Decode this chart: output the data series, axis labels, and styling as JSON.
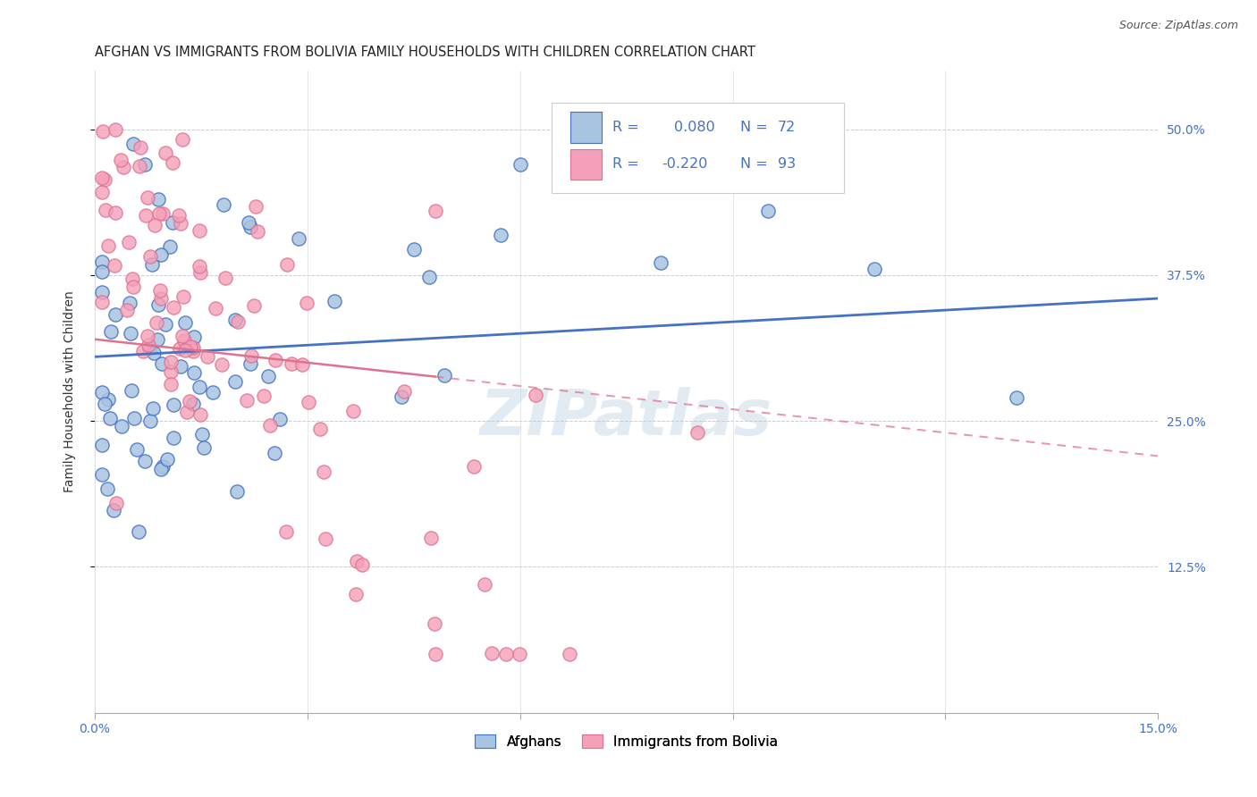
{
  "title": "AFGHAN VS IMMIGRANTS FROM BOLIVIA FAMILY HOUSEHOLDS WITH CHILDREN CORRELATION CHART",
  "source": "Source: ZipAtlas.com",
  "ylabel": "Family Households with Children",
  "legend_label1": "Afghans",
  "legend_label2": "Immigrants from Bolivia",
  "R1": 0.08,
  "N1": 72,
  "R2": -0.22,
  "N2": 93,
  "xlim": [
    0.0,
    0.15
  ],
  "ylim": [
    0.0,
    0.55
  ],
  "color1": "#a8c4e0",
  "color2": "#f4a0b8",
  "line_color1": "#4472c4",
  "line_color2": "#e07090",
  "watermark": "ZIPatlas",
  "title_fontsize": 10.5,
  "tick_fontsize": 10,
  "legend_r_color": "#4472c4",
  "trendline1_y0": 0.305,
  "trendline1_y1": 0.355,
  "trendline2_y0": 0.32,
  "trendline2_y1": 0.22,
  "trendline2_solid_end": 0.03,
  "scatter1_seed": 12,
  "scatter2_seed": 7
}
